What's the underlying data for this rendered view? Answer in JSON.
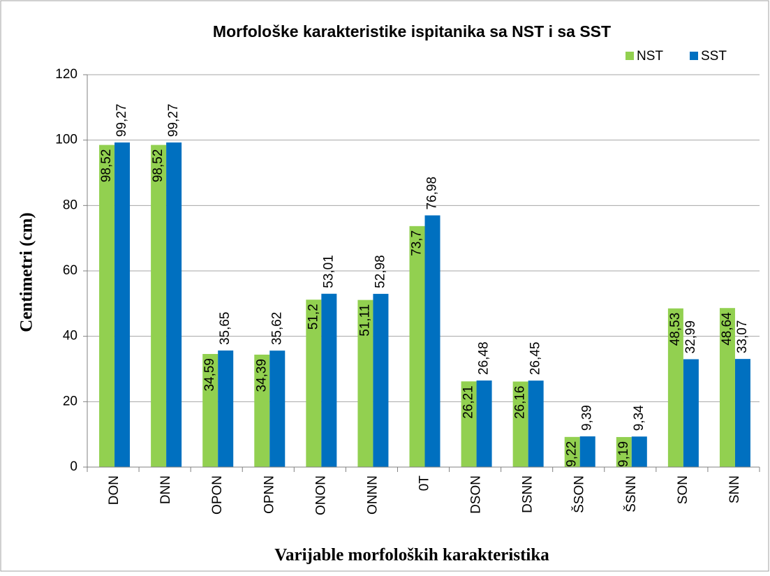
{
  "chart_data": {
    "type": "bar",
    "title": "Morfološke karakteristike ispitanika sa NST i sa SST",
    "x_label": "Varijable morfoloških  karakteristika",
    "y_label": "Centimetri (cm)",
    "categories": [
      "DON",
      "DNN",
      "OPON",
      "OPNN",
      "ONON",
      "ONNN",
      "0T",
      "DSON",
      "DSNN",
      "ŠSON",
      "ŠSNN",
      "SON",
      "SNN"
    ],
    "series": [
      {
        "name": "NST",
        "color": "#92d050",
        "values": [
          98.52,
          98.52,
          34.59,
          34.39,
          51.2,
          51.11,
          73.7,
          26.21,
          26.16,
          9.22,
          9.19,
          48.53,
          48.64
        ],
        "value_labels": [
          "98,52",
          "98,52",
          "34,59",
          "34,39",
          "51,2",
          "51,11",
          "73,7",
          "26,21",
          "26,16",
          "9,22",
          "9,19",
          "48,53",
          "48,64"
        ]
      },
      {
        "name": "SST",
        "color": "#0070c0",
        "values": [
          99.27,
          99.27,
          35.65,
          35.62,
          53.01,
          52.98,
          76.98,
          26.48,
          26.45,
          9.39,
          9.34,
          32.99,
          33.07
        ],
        "value_labels": [
          "99,27",
          "99,27",
          "35,65",
          "35,62",
          "53,01",
          "52,98",
          "76,98",
          "26,48",
          "26,45",
          "9,39",
          "9,34",
          "32,99",
          "33,07"
        ]
      }
    ],
    "ylim": [
      0,
      120
    ],
    "yticks": [
      0,
      20,
      40,
      60,
      80,
      100,
      120
    ],
    "grid": true,
    "legend": "top-right"
  }
}
